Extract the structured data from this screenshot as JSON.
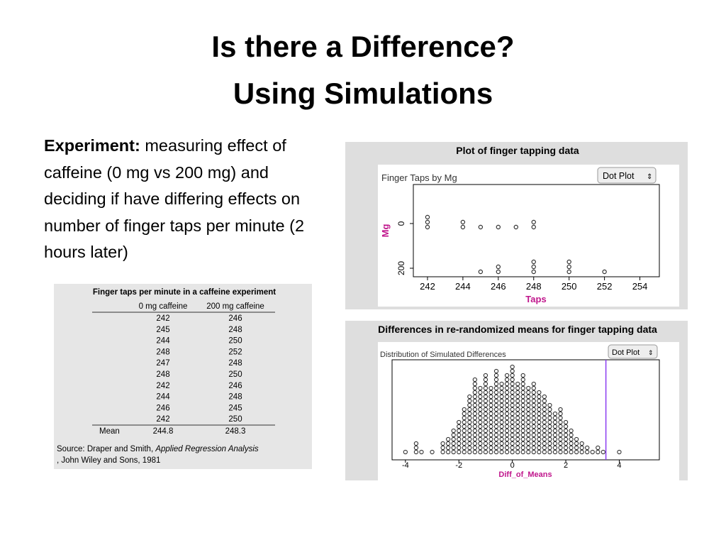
{
  "title": [
    "Is there a Difference?",
    "Using Simulations"
  ],
  "experiment": {
    "label": "Experiment:",
    "text": "measuring effect of caffeine (0 mg vs 200 mg) and deciding if have differing effects on number of finger taps per minute (2 hours later)"
  },
  "table": {
    "title": "Finger taps per minute in a caffeine experiment",
    "headers": [
      "0 mg caffeine",
      "200 mg caffeine"
    ],
    "rows": [
      [
        242,
        246
      ],
      [
        245,
        248
      ],
      [
        244,
        250
      ],
      [
        248,
        252
      ],
      [
        247,
        248
      ],
      [
        248,
        250
      ],
      [
        242,
        246
      ],
      [
        244,
        248
      ],
      [
        246,
        245
      ],
      [
        242,
        250
      ]
    ],
    "mean": [
      "Mean",
      244.8,
      248.3
    ],
    "source": [
      "Source: Draper and Smith, ",
      "Applied Regression Analysis",
      ", John Wiley and Sons, 1981"
    ]
  },
  "plot1": {
    "title": "Plot of finger tapping data",
    "subtitle": "Finger Taps by Mg",
    "button": "Dot Plot",
    "xlabel": "Taps",
    "ylabel": "Mg",
    "groups": [
      "0",
      "200"
    ],
    "xlim": [
      241.2,
      255.1
    ],
    "xticks": [
      242,
      244,
      246,
      248,
      250,
      252,
      254
    ],
    "label_color": "#c0168c"
  },
  "plot2": {
    "title": "Differences in re-randomized means for finger tapping data",
    "subtitle": "Distribution of Simulated Differences",
    "button": "Dot Plot",
    "xlabel": "Diff_of_Means",
    "xlim": [
      -4.5,
      5.5
    ],
    "xticks": [
      -4,
      -2,
      0,
      2,
      4
    ],
    "label_color": "#c0168c",
    "observed_line": 3.5,
    "line_color": "#8a3cf0",
    "x": [
      -4.0,
      -3.6,
      -3.4,
      -3.0,
      -2.6,
      -2.4,
      -2.2,
      -2.0,
      -1.8,
      -1.6,
      -1.4,
      -1.2,
      -1.0,
      -0.8,
      -0.6,
      -0.4,
      -0.2,
      0.0,
      0.2,
      0.4,
      0.6,
      0.8,
      1.0,
      1.2,
      1.4,
      1.6,
      1.8,
      2.0,
      2.2,
      2.4,
      2.6,
      2.8,
      3.0,
      3.2,
      3.4,
      4.0
    ],
    "counts": [
      1,
      3,
      1,
      1,
      3,
      4,
      6,
      8,
      11,
      14,
      18,
      16,
      19,
      16,
      20,
      17,
      19,
      21,
      17,
      19,
      16,
      17,
      15,
      14,
      12,
      10,
      11,
      8,
      6,
      4,
      3,
      2,
      1,
      2,
      1,
      1
    ]
  }
}
